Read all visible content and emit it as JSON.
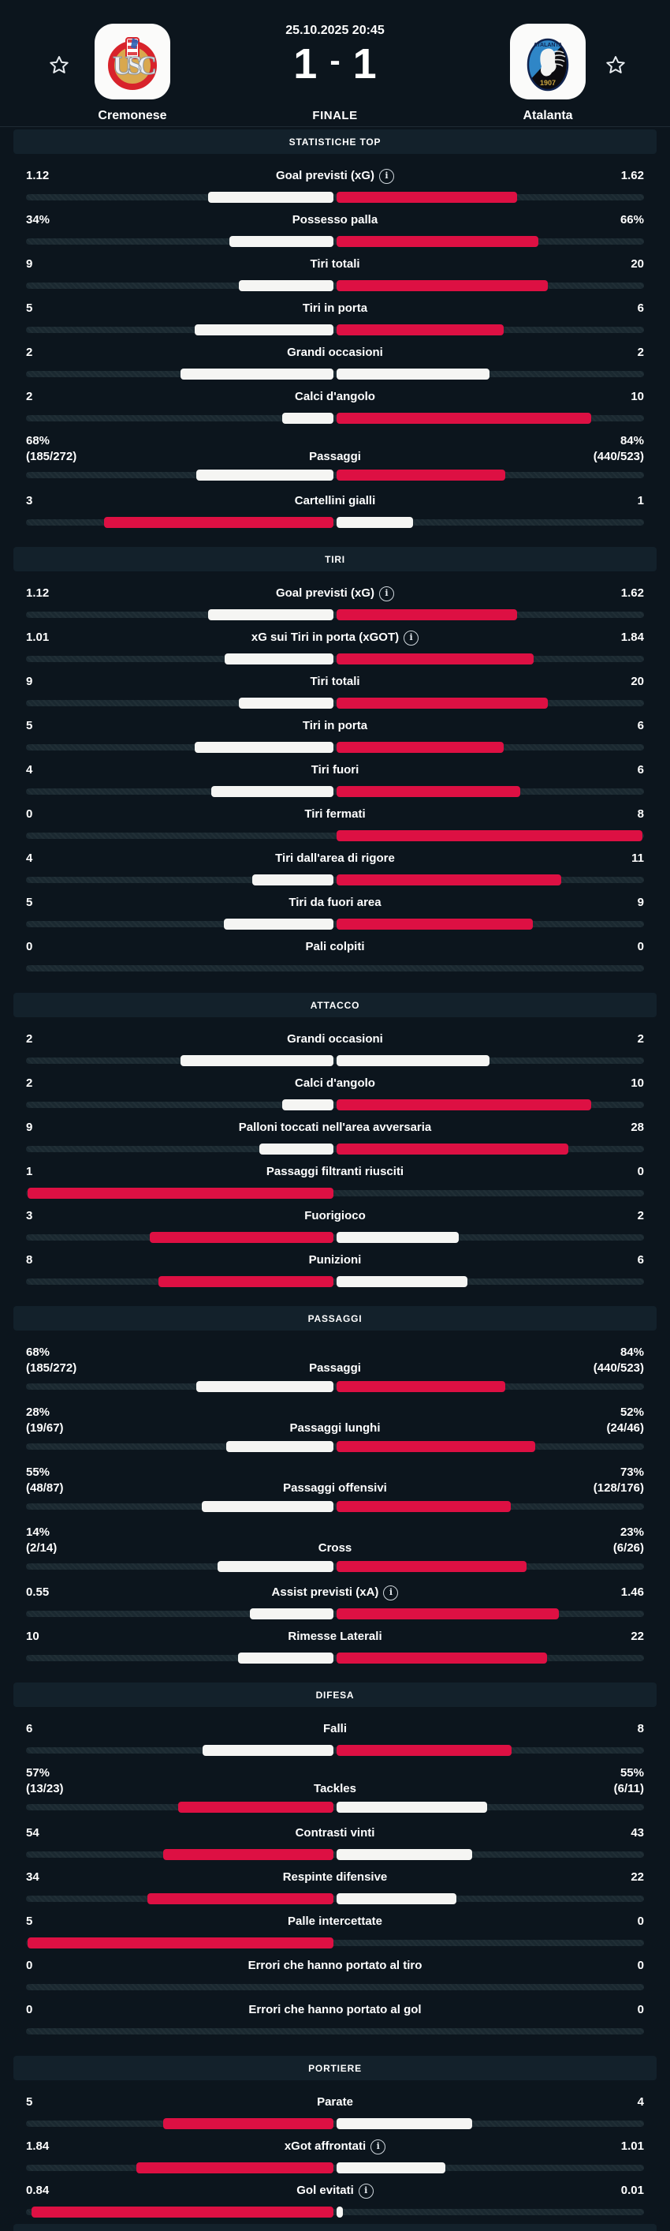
{
  "header": {
    "datetime": "25.10.2025 20:45",
    "home_score": "1",
    "score_separator": "-",
    "away_score": "1",
    "status": "FINALE",
    "home_team": "Cremonese",
    "away_team": "Atalanta"
  },
  "colors": {
    "background": "#0c151d",
    "band_bg": "#13212b",
    "track": "#1a2830",
    "bar_highlight_red": "#dd1043",
    "bar_neutral_white": "#f5f5f3",
    "text": "#ffffff"
  },
  "icons": {
    "favorite": "star-outline",
    "info": "circled-i"
  },
  "sections": [
    {
      "title": "STATISTICHE TOP",
      "rows": [
        {
          "label": "Goal previsti (xG)",
          "info": true,
          "left": "1.12",
          "right": "1.62",
          "lnum": 1.12,
          "rnum": 1.62
        },
        {
          "label": "Possesso palla",
          "left": "34%",
          "right": "66%",
          "lnum": 34,
          "rnum": 66
        },
        {
          "label": "Tiri totali",
          "left": "9",
          "right": "20",
          "lnum": 9,
          "rnum": 20
        },
        {
          "label": "Tiri in porta",
          "left": "5",
          "right": "6",
          "lnum": 5,
          "rnum": 6
        },
        {
          "label": "Grandi occasioni",
          "left": "2",
          "right": "2",
          "lnum": 2,
          "rnum": 2
        },
        {
          "label": "Calci d'angolo",
          "left": "2",
          "right": "10",
          "lnum": 2,
          "rnum": 10
        },
        {
          "label": "Passaggi",
          "left": "68%",
          "left2": "(185/272)",
          "right": "84%",
          "right2": "(440/523)",
          "lnum": 68,
          "rnum": 84
        },
        {
          "label": "Cartellini gialli",
          "left": "3",
          "right": "1",
          "lnum": 3,
          "rnum": 1
        }
      ]
    },
    {
      "title": "TIRI",
      "rows": [
        {
          "label": "Goal previsti (xG)",
          "info": true,
          "left": "1.12",
          "right": "1.62",
          "lnum": 1.12,
          "rnum": 1.62
        },
        {
          "label": "xG sui Tiri in porta (xGOT)",
          "info": true,
          "left": "1.01",
          "right": "1.84",
          "lnum": 1.01,
          "rnum": 1.84
        },
        {
          "label": "Tiri totali",
          "left": "9",
          "right": "20",
          "lnum": 9,
          "rnum": 20
        },
        {
          "label": "Tiri in porta",
          "left": "5",
          "right": "6",
          "lnum": 5,
          "rnum": 6
        },
        {
          "label": "Tiri fuori",
          "left": "4",
          "right": "6",
          "lnum": 4,
          "rnum": 6
        },
        {
          "label": "Tiri fermati",
          "left": "0",
          "right": "8",
          "lnum": 0,
          "rnum": 8
        },
        {
          "label": "Tiri dall'area di rigore",
          "left": "4",
          "right": "11",
          "lnum": 4,
          "rnum": 11
        },
        {
          "label": "Tiri da fuori area",
          "left": "5",
          "right": "9",
          "lnum": 5,
          "rnum": 9
        },
        {
          "label": "Pali colpiti",
          "left": "0",
          "right": "0",
          "lnum": 0,
          "rnum": 0
        }
      ]
    },
    {
      "title": "ATTACCO",
      "rows": [
        {
          "label": "Grandi occasioni",
          "left": "2",
          "right": "2",
          "lnum": 2,
          "rnum": 2
        },
        {
          "label": "Calci d'angolo",
          "left": "2",
          "right": "10",
          "lnum": 2,
          "rnum": 10
        },
        {
          "label": "Palloni toccati nell'area avversaria",
          "left": "9",
          "right": "28",
          "lnum": 9,
          "rnum": 28
        },
        {
          "label": "Passaggi filtranti riusciti",
          "left": "1",
          "right": "0",
          "lnum": 1,
          "rnum": 0
        },
        {
          "label": "Fuorigioco",
          "left": "3",
          "right": "2",
          "lnum": 3,
          "rnum": 2
        },
        {
          "label": "Punizioni",
          "left": "8",
          "right": "6",
          "lnum": 8,
          "rnum": 6
        }
      ]
    },
    {
      "title": "PASSAGGI",
      "rows": [
        {
          "label": "Passaggi",
          "left": "68%",
          "left2": "(185/272)",
          "right": "84%",
          "right2": "(440/523)",
          "lnum": 68,
          "rnum": 84
        },
        {
          "label": "Passaggi lunghi",
          "left": "28%",
          "left2": "(19/67)",
          "right": "52%",
          "right2": "(24/46)",
          "lnum": 28,
          "rnum": 52
        },
        {
          "label": "Passaggi offensivi",
          "left": "55%",
          "left2": "(48/87)",
          "right": "73%",
          "right2": "(128/176)",
          "lnum": 55,
          "rnum": 73
        },
        {
          "label": "Cross",
          "left": "14%",
          "left2": "(2/14)",
          "right": "23%",
          "right2": "(6/26)",
          "lnum": 14,
          "rnum": 23
        },
        {
          "label": "Assist previsti (xA)",
          "info": true,
          "left": "0.55",
          "right": "1.46",
          "lnum": 0.55,
          "rnum": 1.46
        },
        {
          "label": "Rimesse Laterali",
          "left": "10",
          "right": "22",
          "lnum": 10,
          "rnum": 22
        }
      ]
    },
    {
      "title": "DIFESA",
      "rows": [
        {
          "label": "Falli",
          "left": "6",
          "right": "8",
          "lnum": 6,
          "rnum": 8
        },
        {
          "label": "Tackles",
          "left": "57%",
          "left2": "(13/23)",
          "right": "55%",
          "right2": "(6/11)",
          "lnum": 57,
          "rnum": 55
        },
        {
          "label": "Contrasti vinti",
          "left": "54",
          "right": "43",
          "lnum": 54,
          "rnum": 43
        },
        {
          "label": "Respinte difensive",
          "left": "34",
          "right": "22",
          "lnum": 34,
          "rnum": 22
        },
        {
          "label": "Palle intercettate",
          "left": "5",
          "right": "0",
          "lnum": 5,
          "rnum": 0
        },
        {
          "label": "Errori che hanno portato al tiro",
          "left": "0",
          "right": "0",
          "lnum": 0,
          "rnum": 0
        },
        {
          "label": "Errori che hanno portato al gol",
          "left": "0",
          "right": "0",
          "lnum": 0,
          "rnum": 0
        }
      ]
    },
    {
      "title": "PORTIERE",
      "rows": [
        {
          "label": "Parate",
          "left": "5",
          "right": "4",
          "lnum": 5,
          "rnum": 4
        },
        {
          "label": "xGot affrontati",
          "info": true,
          "left": "1.84",
          "right": "1.01",
          "lnum": 1.84,
          "rnum": 1.01
        },
        {
          "label": "Gol evitati",
          "info": true,
          "left": "0.84",
          "right": "0.01",
          "lnum": 0.84,
          "rnum": 0.01
        }
      ]
    }
  ]
}
